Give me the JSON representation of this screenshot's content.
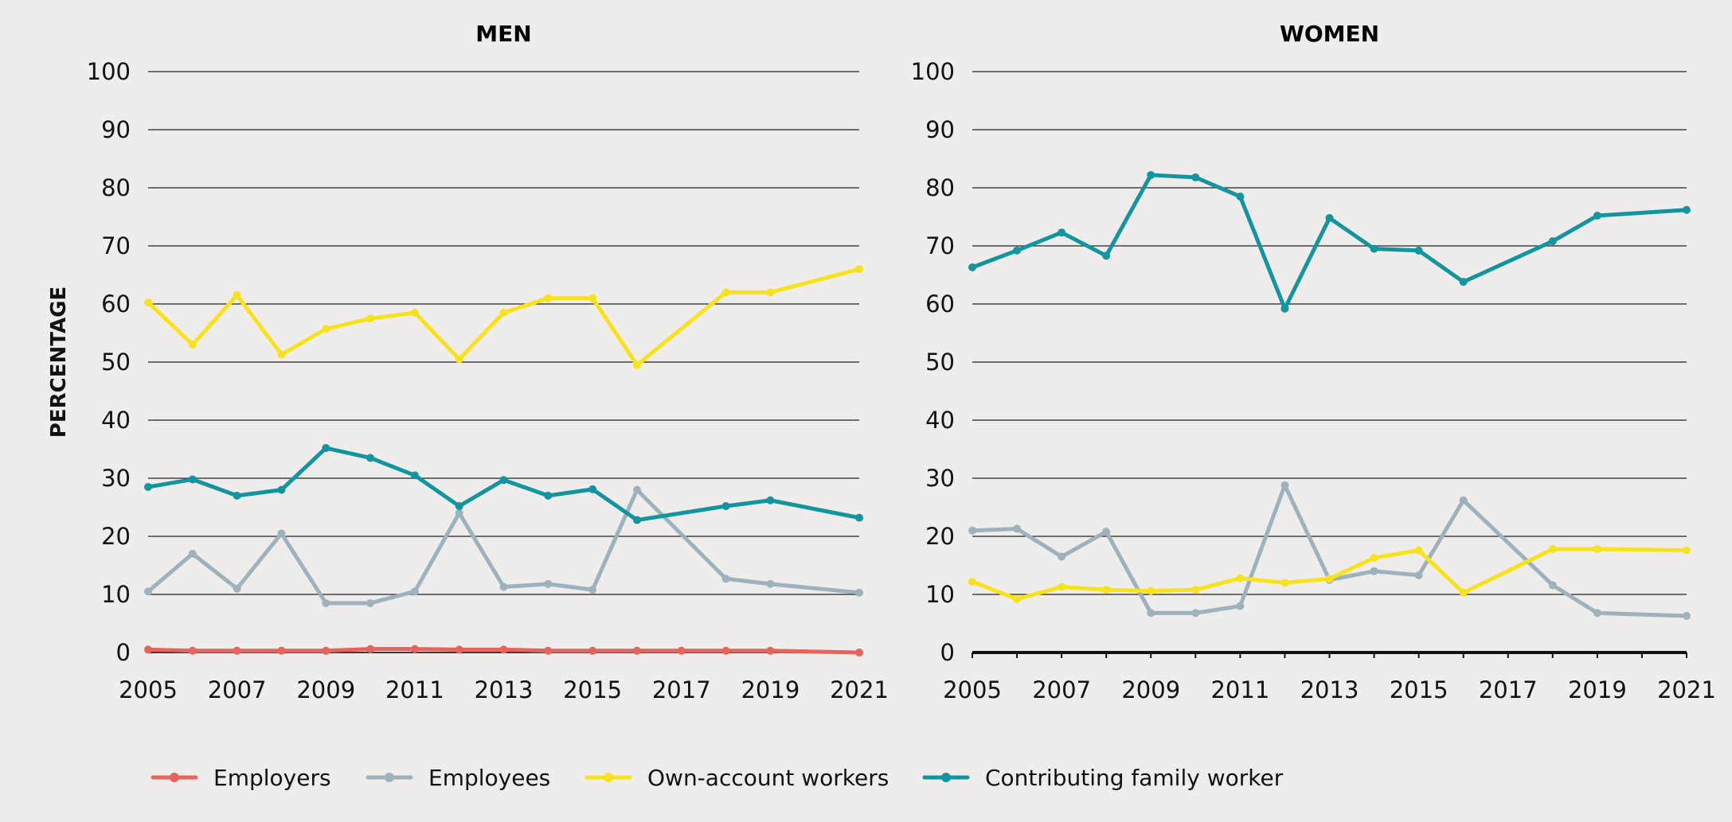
{
  "chart_data": {
    "type": "line",
    "ylabel": "PERCENTAGE",
    "ylim": [
      0,
      100
    ],
    "yticks": [
      0,
      10,
      20,
      30,
      40,
      50,
      60,
      70,
      80,
      90,
      100
    ],
    "xlim": [
      2005,
      2021
    ],
    "xticks": [
      2005,
      2007,
      2009,
      2011,
      2013,
      2015,
      2017,
      2019,
      2021
    ],
    "legend_position": "bottom",
    "legend": [
      {
        "name": "Employers",
        "color": "#e8635a"
      },
      {
        "name": "Employees",
        "color": "#9db2bd"
      },
      {
        "name": "Own-account workers",
        "color": "#f8e21c"
      },
      {
        "name": "Contributing family worker",
        "color": "#12959f"
      }
    ],
    "panels": [
      {
        "title": "MEN",
        "series": [
          {
            "name": "Employers",
            "color": "#e8635a",
            "x": [
              2005,
              2006,
              2007,
              2008,
              2009,
              2010,
              2011,
              2012,
              2013,
              2014,
              2015,
              2016,
              2017,
              2018,
              2019,
              2021
            ],
            "y": [
              0.5,
              0.3,
              0.3,
              0.3,
              0.3,
              0.6,
              0.6,
              0.5,
              0.5,
              0.3,
              0.3,
              0.3,
              0.3,
              0.3,
              0.3,
              0
            ]
          },
          {
            "name": "Employees",
            "color": "#9db2bd",
            "x": [
              2005,
              2006,
              2007,
              2008,
              2009,
              2010,
              2011,
              2012,
              2013,
              2014,
              2015,
              2016,
              2018,
              2019,
              2021
            ],
            "y": [
              10.5,
              17,
              11,
              20.5,
              8.5,
              8.5,
              10.5,
              24,
              11.3,
              11.8,
              10.8,
              28,
              12.7,
              11.8,
              10.3
            ]
          },
          {
            "name": "Own-account workers",
            "color": "#f8e21c",
            "x": [
              2005,
              2006,
              2007,
              2008,
              2009,
              2010,
              2011,
              2012,
              2013,
              2014,
              2015,
              2016,
              2018,
              2019,
              2021
            ],
            "y": [
              60.3,
              53,
              61.5,
              51.3,
              55.7,
              57.5,
              58.5,
              50.5,
              58.5,
              61,
              61,
              49.5,
              62,
              62,
              66
            ]
          },
          {
            "name": "Contributing family worker",
            "color": "#12959f",
            "x": [
              2005,
              2006,
              2007,
              2008,
              2009,
              2010,
              2011,
              2012,
              2013,
              2014,
              2015,
              2016,
              2018,
              2019,
              2021
            ],
            "y": [
              28.5,
              29.8,
              27,
              28,
              35.2,
              33.5,
              30.5,
              25.2,
              29.7,
              27,
              28.1,
              22.8,
              25.2,
              26.2,
              23.2
            ]
          }
        ]
      },
      {
        "title": "WOMEN",
        "series": [
          {
            "name": "Employers",
            "color": "#e8635a",
            "x": [],
            "y": []
          },
          {
            "name": "Employees",
            "color": "#9db2bd",
            "x": [
              2005,
              2006,
              2007,
              2008,
              2009,
              2010,
              2011,
              2012,
              2013,
              2014,
              2015,
              2016,
              2018,
              2019,
              2021
            ],
            "y": [
              21,
              21.3,
              16.5,
              20.8,
              6.8,
              6.8,
              8,
              28.8,
              12.5,
              14,
              13.3,
              26.2,
              11.6,
              6.8,
              6.3
            ]
          },
          {
            "name": "Own-account workers",
            "color": "#f8e21c",
            "x": [
              2005,
              2006,
              2007,
              2008,
              2009,
              2010,
              2011,
              2012,
              2013,
              2014,
              2015,
              2016,
              2018,
              2019,
              2021
            ],
            "y": [
              12.2,
              9.2,
              11.3,
              10.8,
              10.6,
              10.8,
              12.8,
              12,
              12.7,
              16.3,
              17.6,
              10.3,
              17.8,
              17.8,
              17.6
            ]
          },
          {
            "name": "Contributing family worker",
            "color": "#12959f",
            "x": [
              2005,
              2006,
              2007,
              2008,
              2009,
              2010,
              2011,
              2012,
              2013,
              2014,
              2015,
              2016,
              2018,
              2019,
              2021
            ],
            "y": [
              66.3,
              69.2,
              72.3,
              68.3,
              82.2,
              81.8,
              78.5,
              59.2,
              74.8,
              69.5,
              69.2,
              63.8,
              70.8,
              75.2,
              76.2
            ]
          }
        ]
      }
    ]
  }
}
